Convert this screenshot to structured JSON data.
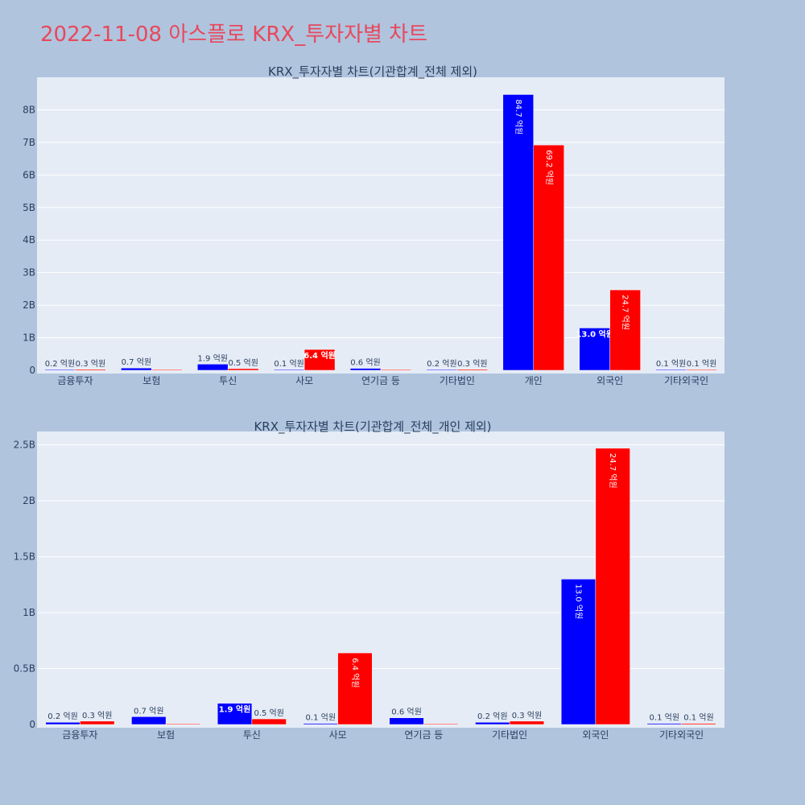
{
  "page": {
    "title": "2022-11-08 아스플로 KRX_투자자별 차트"
  },
  "colors": {
    "background": "#b0c4de",
    "plot_bg": "#e5ecf6",
    "buy": "#0000ff",
    "sell": "#ff0000",
    "title": "#e8485c"
  },
  "chart_data": [
    {
      "type": "bar",
      "title": "KRX_투자자별 차트(기관합계_전체 제외)",
      "categories": [
        "금융투자",
        "보험",
        "투신",
        "사모",
        "연기금 등",
        "기타법인",
        "개인",
        "외국인",
        "기타외국인"
      ],
      "ylim": [
        0,
        9000000000
      ],
      "yticks": [
        0,
        1000000000,
        2000000000,
        3000000000,
        4000000000,
        5000000000,
        6000000000,
        7000000000,
        8000000000
      ],
      "yticklabels": [
        "0",
        "1B",
        "2B",
        "3B",
        "4B",
        "5B",
        "6B",
        "7B",
        "8B"
      ],
      "grid": true,
      "series": [
        {
          "color": "#0000ff",
          "values": [
            20000000,
            70000000,
            190000000,
            10000000,
            60000000,
            20000000,
            8470000000,
            1300000000,
            10000000
          ],
          "labels": [
            "0.2 억원",
            "0.7 억원",
            "1.9 억원",
            "0.1 억원",
            "0.6 억원",
            "0.2 억원",
            "84.7 억원",
            "13.0 억원",
            "0.1 억원"
          ]
        },
        {
          "color": "#ff0000",
          "values": [
            30000000,
            0,
            50000000,
            640000000,
            0,
            30000000,
            6920000000,
            2470000000,
            10000000
          ],
          "labels": [
            "0.3 억원",
            "",
            "0.5 억원",
            "6.4 억원",
            "",
            "0.3 억원",
            "69.2 억원",
            "24.7 억원",
            "0.1 억원"
          ]
        }
      ]
    },
    {
      "type": "bar",
      "title": "KRX_투자자별 차트(기관합계_전체_개인 제외)",
      "categories": [
        "금융투자",
        "보험",
        "투신",
        "사모",
        "연기금 등",
        "기타법인",
        "외국인",
        "기타외국인"
      ],
      "ylim": [
        0,
        2620000000
      ],
      "yticks": [
        0,
        500000000,
        1000000000,
        1500000000,
        2000000000,
        2500000000
      ],
      "yticklabels": [
        "0",
        "0.5B",
        "1B",
        "1.5B",
        "2B",
        "2.5B"
      ],
      "grid": true,
      "series": [
        {
          "color": "#0000ff",
          "values": [
            20000000,
            70000000,
            190000000,
            10000000,
            60000000,
            20000000,
            1300000000,
            10000000
          ],
          "labels": [
            "0.2 억원",
            "0.7 억원",
            "1.9 억원",
            "0.1 억원",
            "0.6 억원",
            "0.2 억원",
            "13.0 억원",
            "0.1 억원"
          ]
        },
        {
          "color": "#ff0000",
          "values": [
            30000000,
            0,
            50000000,
            640000000,
            0,
            30000000,
            2470000000,
            10000000
          ],
          "labels": [
            "0.3 억원",
            "",
            "0.5 억원",
            "6.4 억원",
            "",
            "0.3 억원",
            "24.7 억원",
            "0.1 억원"
          ]
        }
      ]
    }
  ]
}
